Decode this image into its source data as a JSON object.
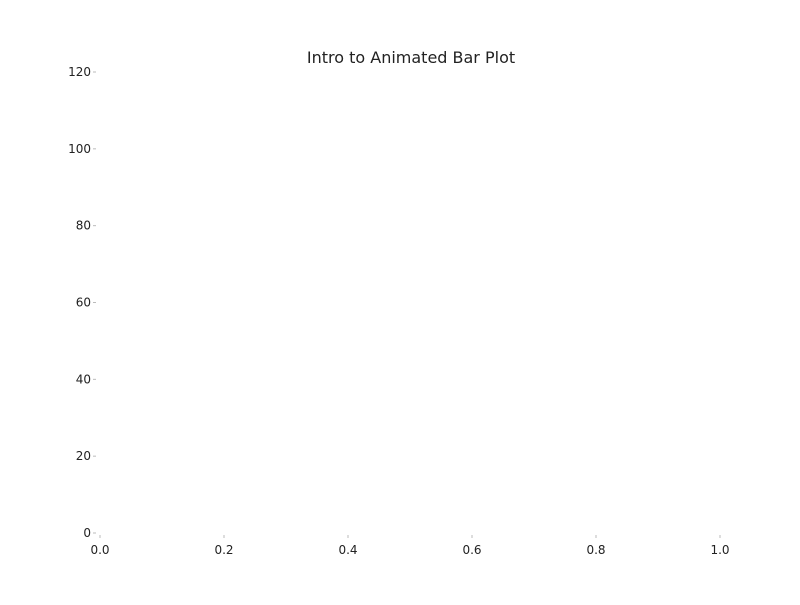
{
  "chart_data": {
    "type": "bar",
    "title": "Intro to Animated Bar Plot",
    "xlabel": "",
    "ylabel": "",
    "xlim": [
      0.0,
      1.0
    ],
    "ylim": [
      0,
      120
    ],
    "x_ticks": [
      "0.0",
      "0.2",
      "0.4",
      "0.6",
      "0.8",
      "1.0"
    ],
    "y_ticks": [
      "0",
      "20",
      "40",
      "60",
      "80",
      "100",
      "120"
    ],
    "categories": [],
    "values": [],
    "grid": false,
    "frame": false
  }
}
